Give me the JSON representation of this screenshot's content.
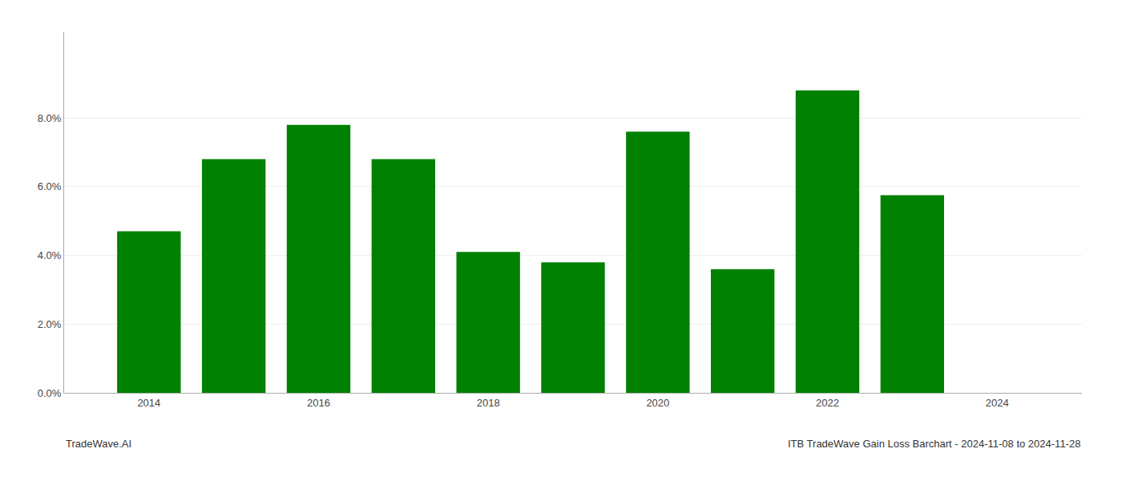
{
  "chart_data": {
    "type": "bar",
    "x": [
      2014,
      2015,
      2016,
      2017,
      2018,
      2019,
      2020,
      2021,
      2022,
      2023
    ],
    "values": [
      0.047,
      0.068,
      0.078,
      0.068,
      0.041,
      0.038,
      0.076,
      0.036,
      0.088,
      0.0575
    ],
    "color": "#008000",
    "xlim": [
      2013,
      2025
    ],
    "xticks": [
      2014,
      2016,
      2018,
      2020,
      2022,
      2024
    ],
    "ylim": [
      0,
      0.105
    ],
    "yticks": [
      {
        "value": 0.0,
        "label": "0.0%"
      },
      {
        "value": 0.02,
        "label": "2.0%"
      },
      {
        "value": 0.04,
        "label": "4.0%"
      },
      {
        "value": 0.06,
        "label": "6.0%"
      },
      {
        "value": 0.08,
        "label": "8.0%"
      }
    ],
    "grid": true,
    "annotations": [
      "TradeWave.AI",
      "ITB TradeWave Gain Loss Barchart - 2024-11-08 to 2024-11-28"
    ]
  }
}
